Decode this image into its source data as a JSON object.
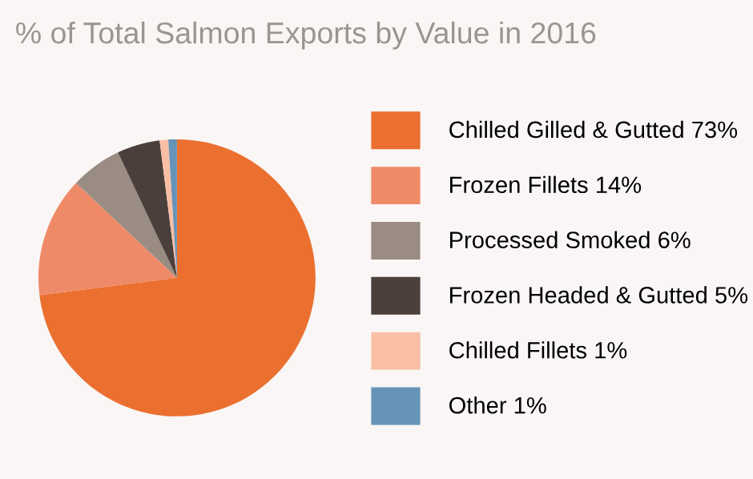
{
  "chart_data": {
    "type": "pie",
    "title": "% of Total Salmon Exports by Value in 2016",
    "categories": [
      "Chilled Gilled & Gutted 73%",
      "Frozen Fillets 14%",
      "Processed Smoked 6%",
      "Frozen Headed & Gutted 5%",
      "Chilled Fillets 1%",
      "Other 1%"
    ],
    "values": [
      73,
      14,
      6,
      5,
      1,
      1
    ],
    "colors": [
      "#eb7030",
      "#ef8a68",
      "#9a8c82",
      "#4a3f3b",
      "#f8bfa5",
      "#6694b8"
    ],
    "legend": "right"
  }
}
